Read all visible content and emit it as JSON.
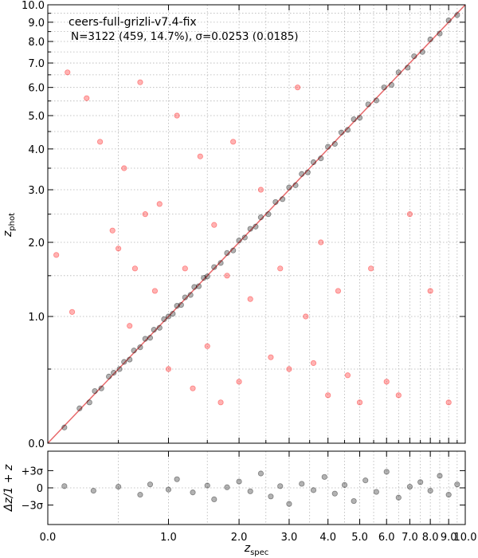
{
  "chart_data": [
    {
      "type": "scatter",
      "panel": "main",
      "scale": "log(1+z)",
      "annotation_title": "ceers-full-grizli-v7.4-fix",
      "annotation_stats": "N=3122 (459, 14.7%), σ=0.0253 (0.0185)",
      "xlabel": "z",
      "xlabel_sub": "spec",
      "ylabel": "z",
      "ylabel_sub": "phot",
      "xlim": [
        0.0,
        10.0
      ],
      "ylim": [
        0.0,
        10.0
      ],
      "x_tick_labels": [
        "0.0",
        "1.0",
        "2.0",
        "3.0",
        "4.0",
        "5.0",
        "6.0",
        "7.0",
        "8.0",
        "9.0",
        "10.0"
      ],
      "y_tick_labels": [
        "0.0",
        "1.0",
        "2.0",
        "3.0",
        "4.0",
        "5.0",
        "6.0",
        "7.0",
        "8.0",
        "9.0",
        "10.0"
      ],
      "grid": true,
      "one_to_one_line": true,
      "series": [
        {
          "color": "#000000",
          "marker_alpha": 0.3,
          "points": [
            [
              0.1,
              0.09
            ],
            [
              0.2,
              0.21
            ],
            [
              0.27,
              0.25
            ],
            [
              0.31,
              0.33
            ],
            [
              0.36,
              0.35
            ],
            [
              0.42,
              0.44
            ],
            [
              0.46,
              0.47
            ],
            [
              0.51,
              0.5
            ],
            [
              0.55,
              0.56
            ],
            [
              0.6,
              0.58
            ],
            [
              0.64,
              0.66
            ],
            [
              0.7,
              0.69
            ],
            [
              0.75,
              0.77
            ],
            [
              0.8,
              0.78
            ],
            [
              0.84,
              0.86
            ],
            [
              0.9,
              0.88
            ],
            [
              0.95,
              0.97
            ],
            [
              1.0,
              1.0
            ],
            [
              1.05,
              1.03
            ],
            [
              1.1,
              1.12
            ],
            [
              1.15,
              1.13
            ],
            [
              1.2,
              1.22
            ],
            [
              1.27,
              1.25
            ],
            [
              1.32,
              1.35
            ],
            [
              1.38,
              1.36
            ],
            [
              1.45,
              1.47
            ],
            [
              1.5,
              1.49
            ],
            [
              1.6,
              1.62
            ],
            [
              1.7,
              1.68
            ],
            [
              1.8,
              1.83
            ],
            [
              1.9,
              1.87
            ],
            [
              2.0,
              2.03
            ],
            [
              2.1,
              2.08
            ],
            [
              2.2,
              2.23
            ],
            [
              2.3,
              2.27
            ],
            [
              2.4,
              2.44
            ],
            [
              2.55,
              2.5
            ],
            [
              2.7,
              2.74
            ],
            [
              2.85,
              2.8
            ],
            [
              3.0,
              3.05
            ],
            [
              3.15,
              3.1
            ],
            [
              3.3,
              3.36
            ],
            [
              3.45,
              3.4
            ],
            [
              3.6,
              3.65
            ],
            [
              3.8,
              3.75
            ],
            [
              4.0,
              4.06
            ],
            [
              4.2,
              4.14
            ],
            [
              4.4,
              4.47
            ],
            [
              4.6,
              4.55
            ],
            [
              4.8,
              4.88
            ],
            [
              5.0,
              4.93
            ],
            [
              5.3,
              5.38
            ],
            [
              5.6,
              5.52
            ],
            [
              5.9,
              6.0
            ],
            [
              6.2,
              6.1
            ],
            [
              6.5,
              6.6
            ],
            [
              6.9,
              6.8
            ],
            [
              7.2,
              7.3
            ],
            [
              7.6,
              7.5
            ],
            [
              8.0,
              8.1
            ],
            [
              8.5,
              8.4
            ],
            [
              9.0,
              9.1
            ],
            [
              9.5,
              9.4
            ]
          ]
        },
        {
          "color": "#ff0000",
          "marker_alpha": 0.3,
          "points": [
            [
              0.05,
              1.8
            ],
            [
              0.15,
              1.05
            ],
            [
              0.12,
              6.6
            ],
            [
              0.25,
              5.6
            ],
            [
              0.35,
              4.2
            ],
            [
              0.45,
              2.2
            ],
            [
              0.5,
              1.9
            ],
            [
              0.55,
              3.5
            ],
            [
              0.6,
              0.9
            ],
            [
              0.65,
              1.6
            ],
            [
              0.7,
              6.2
            ],
            [
              0.75,
              2.5
            ],
            [
              0.85,
              1.3
            ],
            [
              0.9,
              2.7
            ],
            [
              1.0,
              0.5
            ],
            [
              1.1,
              5.0
            ],
            [
              1.2,
              1.6
            ],
            [
              1.3,
              0.35
            ],
            [
              1.4,
              3.8
            ],
            [
              1.5,
              0.7
            ],
            [
              1.6,
              2.3
            ],
            [
              1.7,
              0.25
            ],
            [
              1.8,
              1.5
            ],
            [
              1.9,
              4.2
            ],
            [
              2.0,
              0.4
            ],
            [
              2.2,
              1.2
            ],
            [
              2.4,
              3.0
            ],
            [
              2.6,
              0.6
            ],
            [
              2.8,
              1.6
            ],
            [
              3.0,
              0.5
            ],
            [
              3.2,
              6.0
            ],
            [
              3.4,
              1.0
            ],
            [
              3.6,
              0.55
            ],
            [
              3.8,
              2.0
            ],
            [
              4.0,
              0.3
            ],
            [
              4.3,
              1.3
            ],
            [
              4.6,
              0.45
            ],
            [
              5.0,
              0.25
            ],
            [
              5.4,
              1.6
            ],
            [
              6.0,
              0.4
            ],
            [
              6.5,
              0.3
            ],
            [
              7.0,
              2.5
            ],
            [
              8.0,
              1.3
            ],
            [
              9.0,
              0.25
            ]
          ]
        }
      ]
    },
    {
      "type": "scatter",
      "panel": "residual",
      "ylabel": "Δz/1 + z",
      "y_tick_labels": [
        "+3σ",
        "0",
        "−3σ"
      ],
      "sigma": 0.0253,
      "xlim": [
        0.0,
        10.0
      ],
      "series": [
        {
          "color": "#000000",
          "marker_alpha": 0.3,
          "points": [
            [
              0.1,
              0.3
            ],
            [
              0.3,
              -0.5
            ],
            [
              0.5,
              0.2
            ],
            [
              0.7,
              -1.2
            ],
            [
              0.8,
              0.6
            ],
            [
              1.0,
              -0.3
            ],
            [
              1.1,
              1.5
            ],
            [
              1.3,
              -0.8
            ],
            [
              1.5,
              0.4
            ],
            [
              1.6,
              -2.0
            ],
            [
              1.8,
              0.1
            ],
            [
              2.0,
              1.1
            ],
            [
              2.2,
              -0.6
            ],
            [
              2.4,
              2.5
            ],
            [
              2.6,
              -1.5
            ],
            [
              2.8,
              0.3
            ],
            [
              3.0,
              -2.8
            ],
            [
              3.3,
              0.7
            ],
            [
              3.6,
              -0.4
            ],
            [
              3.9,
              1.9
            ],
            [
              4.2,
              -1.0
            ],
            [
              4.5,
              0.5
            ],
            [
              4.8,
              -2.3
            ],
            [
              5.2,
              1.3
            ],
            [
              5.6,
              -0.7
            ],
            [
              6.0,
              2.8
            ],
            [
              6.5,
              -1.7
            ],
            [
              7.0,
              0.2
            ],
            [
              7.5,
              1.0
            ],
            [
              8.0,
              -0.5
            ],
            [
              8.5,
              2.1
            ],
            [
              9.0,
              -1.2
            ],
            [
              9.5,
              0.6
            ]
          ]
        }
      ]
    }
  ]
}
